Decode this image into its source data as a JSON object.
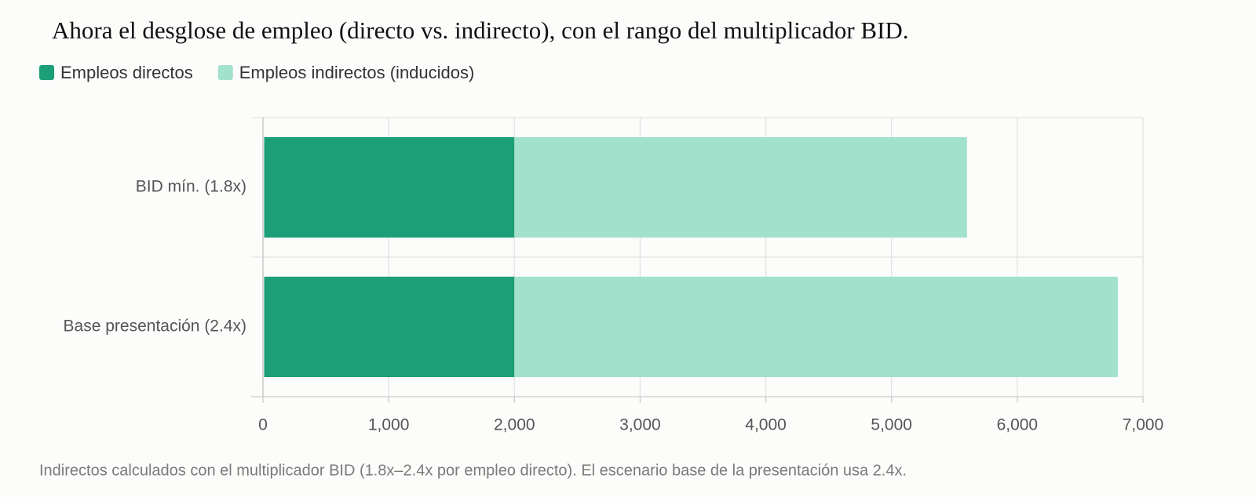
{
  "chart_data": {
    "type": "stacked-bar-horizontal",
    "title": "Ahora el desglose de empleo (directo vs. indirecto), con el rango del multiplicador BID.",
    "categories": [
      "BID mín. (1.8x)",
      "Base presentación (2.4x)"
    ],
    "series": [
      {
        "name": "Empleos directos",
        "color": "#1c9e76",
        "values": [
          2000,
          2000
        ]
      },
      {
        "name": "Empleos indirectos (inducidos)",
        "color": "#a2e1cc",
        "values": [
          3600,
          4800
        ]
      }
    ],
    "xlim": [
      0,
      7000
    ],
    "xticks": [
      0,
      {
        "value": 1000,
        "label": "1,000"
      },
      {
        "value": 2000,
        "label": "2,000"
      },
      {
        "value": 3000,
        "label": "3,000"
      },
      {
        "value": 4000,
        "label": "4,000"
      },
      {
        "value": 5000,
        "label": "5,000"
      },
      {
        "value": 6000,
        "label": "6,000"
      },
      {
        "value": 7000,
        "label": "7,000"
      }
    ],
    "grid": true,
    "footnote": "Indirectos calculados con el multiplicador BID (1.8x–2.4x por empleo directo). El escenario base de la presentación usa 2.4x."
  }
}
